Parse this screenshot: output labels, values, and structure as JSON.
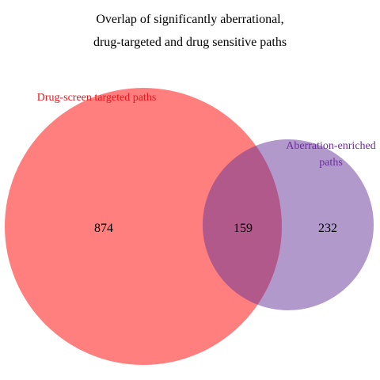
{
  "title": {
    "line1": "Overlap of significantly aberrational,",
    "line2": "drug-targeted and drug sensitive paths"
  },
  "sets": {
    "drug_screen": {
      "label": "Drug-screen targeted paths",
      "color": "#ff0000",
      "label_color": "#e8151b"
    },
    "aberration": {
      "label_line1": "Aberration-enriched",
      "label_line2": "paths",
      "color": "#663399",
      "label_color": "#6a2c9a"
    }
  },
  "counts": {
    "drug_screen_only": "874",
    "overlap": "159",
    "aberration_only": "232"
  },
  "chart_data": {
    "type": "venn",
    "title": "Overlap of significantly aberrational, drug-targeted and drug sensitive paths",
    "sets": [
      {
        "name": "Drug-screen targeted paths",
        "only": 874
      },
      {
        "name": "Aberration-enriched paths",
        "only": 232
      }
    ],
    "intersection": 159
  }
}
